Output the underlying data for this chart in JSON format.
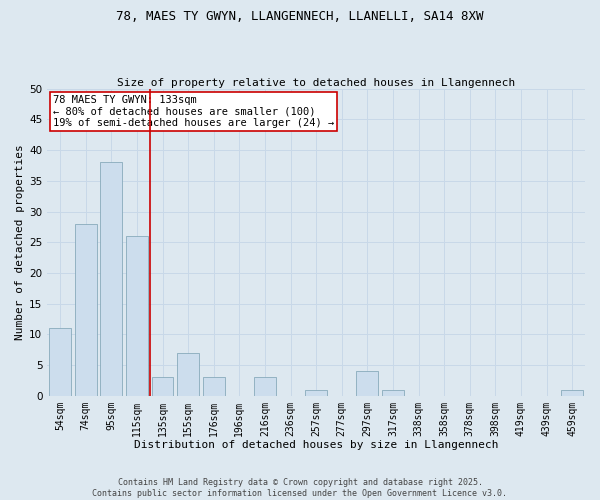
{
  "title": "78, MAES TY GWYN, LLANGENNECH, LLANELLI, SA14 8XW",
  "subtitle": "Size of property relative to detached houses in Llangennech",
  "xlabel": "Distribution of detached houses by size in Llangennech",
  "ylabel": "Number of detached properties",
  "categories": [
    "54sqm",
    "74sqm",
    "95sqm",
    "115sqm",
    "135sqm",
    "155sqm",
    "176sqm",
    "196sqm",
    "216sqm",
    "236sqm",
    "257sqm",
    "277sqm",
    "297sqm",
    "317sqm",
    "338sqm",
    "358sqm",
    "378sqm",
    "398sqm",
    "419sqm",
    "439sqm",
    "459sqm"
  ],
  "values": [
    11,
    28,
    38,
    26,
    3,
    7,
    3,
    0,
    3,
    0,
    1,
    0,
    4,
    1,
    0,
    0,
    0,
    0,
    0,
    0,
    1
  ],
  "bar_color": "#ccdded",
  "bar_edge_color": "#88aabb",
  "vline_index": 3.5,
  "vline_color": "#cc0000",
  "annotation_text": "78 MAES TY GWYN: 133sqm\n← 80% of detached houses are smaller (100)\n19% of semi-detached houses are larger (24) →",
  "annotation_box_facecolor": "#ffffff",
  "annotation_box_edge": "#cc0000",
  "ylim": [
    0,
    50
  ],
  "yticks": [
    0,
    5,
    10,
    15,
    20,
    25,
    30,
    35,
    40,
    45,
    50
  ],
  "grid_color": "#c8d8e8",
  "plot_bg_color": "#dde8f0",
  "fig_bg_color": "#dde8f0",
  "title_fontsize": 9,
  "subtitle_fontsize": 8,
  "footer": "Contains HM Land Registry data © Crown copyright and database right 2025.\nContains public sector information licensed under the Open Government Licence v3.0."
}
